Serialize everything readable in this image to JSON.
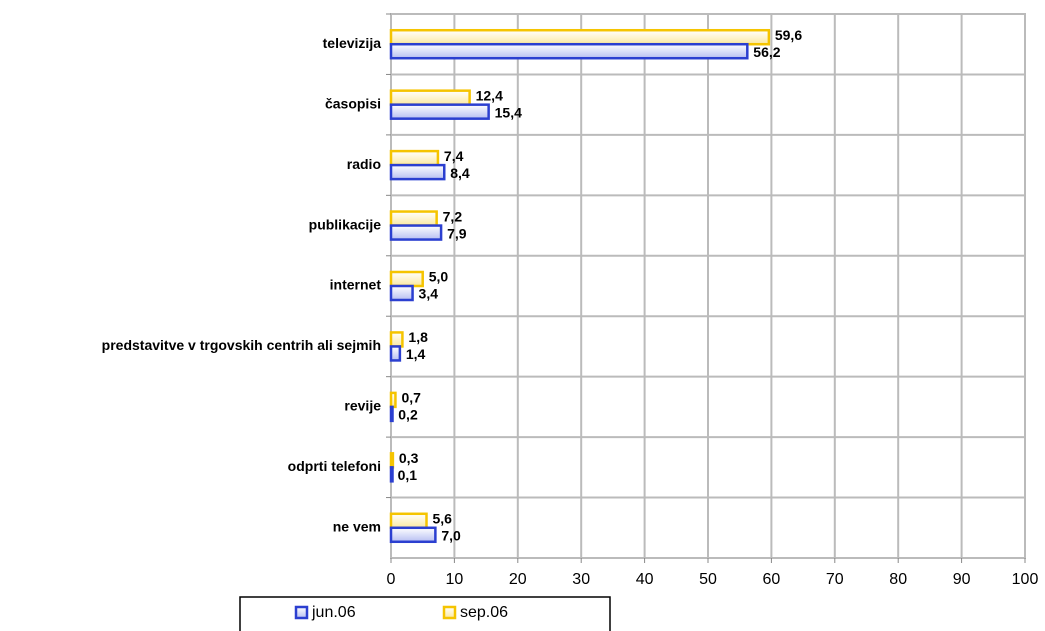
{
  "chart_data": {
    "type": "bar",
    "orientation": "horizontal",
    "categories": [
      "televizija",
      "časopisi",
      "radio",
      "publikacije",
      "internet",
      "predstavitve v trgovskih centrih ali sejmih",
      "revije",
      "odprti telefoni",
      "ne vem"
    ],
    "series": [
      {
        "name": "jun.06",
        "color": "#2b3fd0",
        "values": [
          56.2,
          15.4,
          8.4,
          7.9,
          3.4,
          1.4,
          0.2,
          0.1,
          7.0
        ],
        "value_labels": [
          "56,2",
          "15,4",
          "8,4",
          "7,9",
          "3,4",
          "1,4",
          "0,2",
          "0,1",
          "7,0"
        ]
      },
      {
        "name": "sep.06",
        "color": "#f5c400",
        "values": [
          59.6,
          12.4,
          7.4,
          7.2,
          5.0,
          1.8,
          0.7,
          0.3,
          5.6
        ],
        "value_labels": [
          "59,6",
          "12,4",
          "7,4",
          "7,2",
          "5,0",
          "1,8",
          "0,7",
          "0,3",
          "5,6"
        ]
      }
    ],
    "xlim": [
      0,
      100
    ],
    "xticks": [
      0,
      10,
      20,
      30,
      40,
      50,
      60,
      70,
      80,
      90,
      100
    ],
    "grid": true,
    "legend": "bottom"
  }
}
